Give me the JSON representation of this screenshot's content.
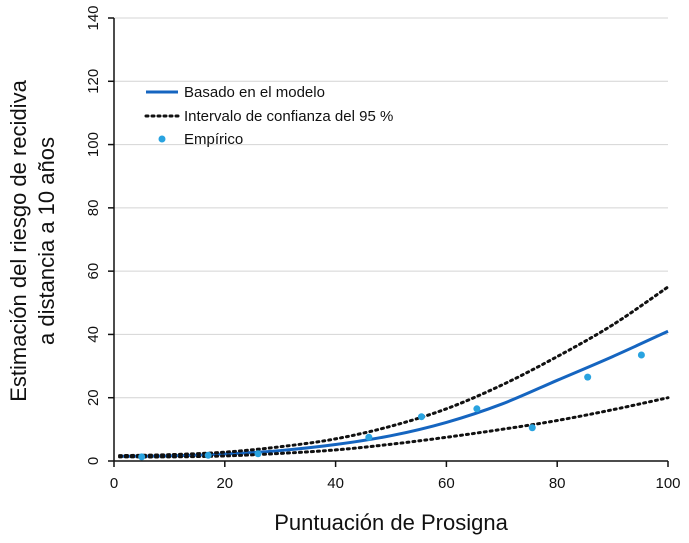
{
  "chart_data": {
    "type": "line",
    "xlabel": "Puntuación de Prosigna",
    "ylabel_lines": [
      "Estimación del riesgo de recidiva",
      "a distancia a 10 años"
    ],
    "xlim": [
      0,
      100
    ],
    "ylim": [
      0,
      140
    ],
    "x_ticks": [
      0,
      20,
      40,
      60,
      80,
      100
    ],
    "y_ticks": [
      0,
      20,
      40,
      60,
      80,
      100,
      120,
      140
    ],
    "grid": "horizontal",
    "legend_position": "top-left",
    "series": [
      {
        "name": "Basado en el modelo",
        "style": "solid",
        "color": "#1565c0",
        "x": [
          1,
          10,
          20,
          30,
          40,
          50,
          60,
          70,
          80,
          90,
          100
        ],
        "y": [
          1.5,
          1.6,
          2.2,
          3.3,
          5.2,
          8.0,
          12.2,
          18.0,
          25.5,
          33.0,
          41.0
        ]
      },
      {
        "name": "Intervalo de confianza del 95 %",
        "style": "dotted",
        "color": "#111111",
        "x": [
          1,
          10,
          20,
          30,
          40,
          50,
          60,
          70,
          80,
          90,
          100
        ],
        "y": [
          1.7,
          2.0,
          2.8,
          4.5,
          7.0,
          11.0,
          16.5,
          24.0,
          33.0,
          43.0,
          55.0
        ]
      },
      {
        "name": "",
        "style": "dotted",
        "color": "#111111",
        "x": [
          1,
          10,
          20,
          30,
          40,
          50,
          60,
          70,
          80,
          90,
          100
        ],
        "y": [
          1.3,
          1.3,
          1.6,
          2.4,
          3.5,
          5.3,
          7.5,
          10.0,
          12.8,
          16.2,
          20.0
        ]
      },
      {
        "name": "Empírico",
        "style": "points",
        "color": "#29a3e0",
        "x": [
          5,
          17,
          26,
          46,
          55.5,
          65.5,
          75.5,
          85.5,
          95.2
        ],
        "y": [
          1.3,
          1.8,
          2.3,
          7.5,
          14.0,
          16.5,
          10.5,
          26.5,
          33.5
        ]
      }
    ]
  }
}
